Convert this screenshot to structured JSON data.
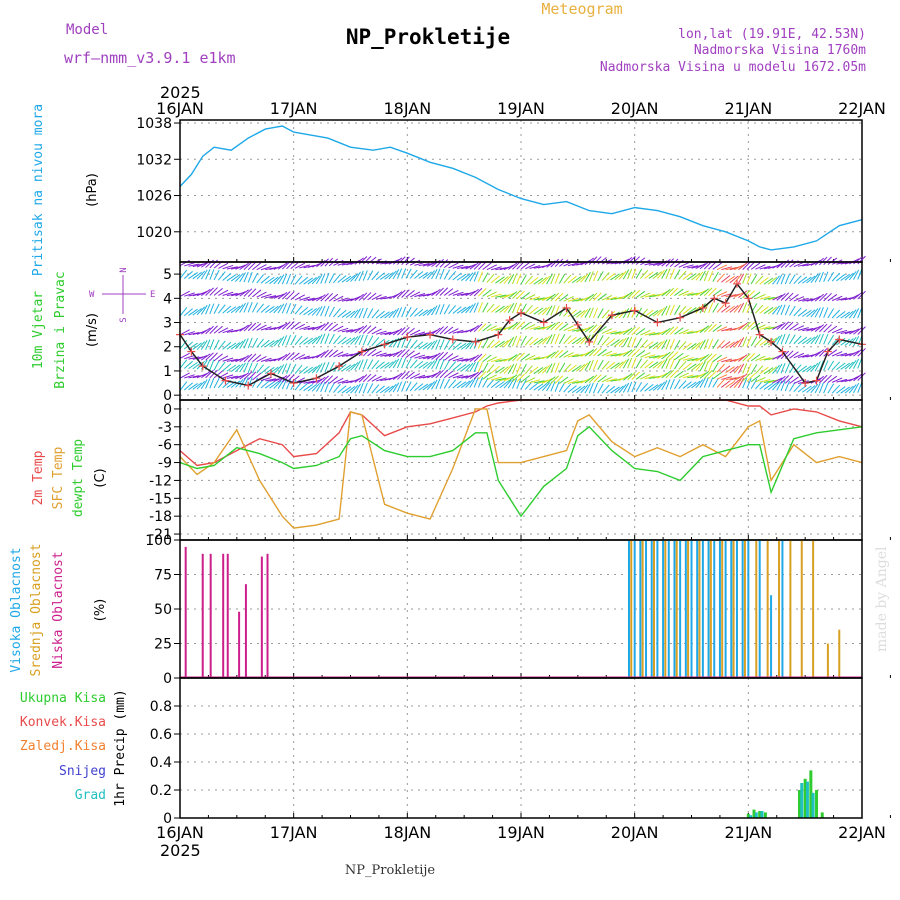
{
  "header": {
    "model_label": "Model",
    "model_name": "wrf—nmm_v3.9.1  e1km",
    "title": "NP_Prokletije",
    "product": "Meteogram",
    "lonlat": "lon,lat (19.91E, 42.53N)",
    "elevation": "Nadmorska Visina 1760m",
    "model_elevation": "Nadmorska Visina u modelu 1672.05m",
    "footer_station": "NP_Prokletije",
    "credit": "made by Angel"
  },
  "time_axis": {
    "year": "2025",
    "labels": [
      "16JAN",
      "17JAN",
      "18JAN",
      "19JAN",
      "20JAN",
      "21JAN",
      "22JAN"
    ]
  },
  "colors": {
    "pressure": "#1ea8e8",
    "temp2m": "#e84a4a",
    "sfc_temp": "#e0a030",
    "dewpt": "#2ecc2e",
    "high_cloud": "#1ea8e8",
    "mid_cloud": "#d8a020",
    "low_cloud": "#cc1f8c",
    "total_precip": "#2ecc2e",
    "conv_precip": "#e84a4a",
    "frozen_precip": "#f08030",
    "snow": "#4040d0",
    "hail": "#20c0c0"
  },
  "chart_data": [
    {
      "type": "line",
      "panel": "pressure",
      "ylabel": [
        "Pritisak na nivou mora",
        "(hPa)"
      ],
      "ylim": [
        1015,
        1038.5
      ],
      "yticks": [
        1020,
        1026,
        1032,
        1038
      ],
      "grid": true,
      "x_days": [
        0,
        0.1,
        0.2,
        0.3,
        0.45,
        0.6,
        0.75,
        0.9,
        1.0,
        1.15,
        1.3,
        1.5,
        1.7,
        1.85,
        2.0,
        2.2,
        2.4,
        2.6,
        2.8,
        3.0,
        3.2,
        3.4,
        3.6,
        3.8,
        4.0,
        4.2,
        4.4,
        4.6,
        4.8,
        5.0,
        5.1,
        5.2,
        5.4,
        5.6,
        5.8,
        6.0
      ],
      "series": [
        {
          "values": [
            1027.5,
            1029.5,
            1032.5,
            1034,
            1033.5,
            1035.5,
            1037,
            1037.5,
            1036.5,
            1036,
            1035.5,
            1034,
            1033.5,
            1034,
            1033,
            1031.5,
            1030.5,
            1029,
            1027,
            1025.5,
            1024.5,
            1025,
            1023.5,
            1023,
            1024,
            1023.5,
            1022.5,
            1021,
            1020,
            1018.5,
            1017.5,
            1017,
            1017.5,
            1018.5,
            1021,
            1022
          ]
        }
      ]
    },
    {
      "type": "line",
      "panel": "wind",
      "ylabel": [
        "10m Vjetar",
        "Brzina i Pravac",
        "(m/s)"
      ],
      "compass": {
        "n": "N",
        "s": "S",
        "w": "W",
        "e": "E"
      },
      "ylim": [
        -0.2,
        5.5
      ],
      "yticks": [
        0,
        1,
        2,
        3,
        4,
        5
      ],
      "grid": true,
      "x_days": [
        0,
        0.1,
        0.2,
        0.4,
        0.6,
        0.8,
        1.0,
        1.2,
        1.4,
        1.6,
        1.8,
        2.0,
        2.2,
        2.4,
        2.6,
        2.8,
        2.9,
        3.0,
        3.2,
        3.4,
        3.5,
        3.6,
        3.8,
        4.0,
        4.2,
        4.4,
        4.6,
        4.7,
        4.8,
        4.9,
        5.0,
        5.1,
        5.2,
        5.3,
        5.5,
        5.6,
        5.7,
        5.8,
        6.0
      ],
      "series": [
        {
          "values": [
            2.5,
            1.8,
            1.2,
            0.6,
            0.4,
            0.9,
            0.5,
            0.7,
            1.2,
            1.8,
            2.1,
            2.4,
            2.5,
            2.3,
            2.2,
            2.5,
            3.1,
            3.4,
            3.0,
            3.6,
            2.9,
            2.2,
            3.3,
            3.5,
            3.0,
            3.2,
            3.6,
            4.0,
            3.8,
            4.6,
            4.0,
            2.5,
            2.2,
            1.8,
            0.5,
            0.6,
            1.8,
            2.3,
            2.1
          ]
        }
      ]
    },
    {
      "type": "line",
      "panel": "temperature",
      "ylabel": [
        "2m Temp",
        "SFC Temp",
        "dewpt Temp",
        "(C)"
      ],
      "ylim": [
        -22,
        1.5
      ],
      "yticks": [
        0,
        -3,
        -6,
        -9,
        -12,
        -15,
        -18,
        -21
      ],
      "grid": true,
      "x_days": [
        0,
        0.15,
        0.3,
        0.5,
        0.7,
        0.9,
        1.0,
        1.2,
        1.4,
        1.5,
        1.6,
        1.8,
        2.0,
        2.2,
        2.4,
        2.6,
        2.7,
        2.8,
        3.0,
        3.2,
        3.4,
        3.5,
        3.6,
        3.8,
        4.0,
        4.2,
        4.4,
        4.6,
        4.8,
        5.0,
        5.1,
        5.2,
        5.4,
        5.6,
        5.8,
        6.0
      ],
      "series": [
        {
          "name": "2m Temp",
          "values": [
            -7,
            -9.5,
            -9,
            -7,
            -5,
            -6,
            -8,
            -7.5,
            -4,
            -0.5,
            -1,
            -4.5,
            -3,
            -2.5,
            -1.5,
            -0.5,
            0.5,
            1,
            1.5,
            2,
            1.5,
            1.5,
            2,
            2,
            2,
            1.5,
            1.5,
            1.5,
            1.5,
            0.5,
            0.5,
            -1,
            0,
            -0.5,
            -2,
            -3
          ]
        },
        {
          "name": "SFC Temp",
          "values": [
            -8,
            -11,
            -9,
            -3.5,
            -12,
            -18,
            -20,
            -19.5,
            -18.5,
            -0.5,
            -1,
            -16,
            -17.5,
            -18.5,
            -10,
            0,
            0,
            -9,
            -9,
            -8,
            -7,
            -2,
            -1,
            -5.5,
            -8,
            -6.5,
            -8,
            -6,
            -8,
            -3,
            -2,
            -12,
            -6,
            -9,
            -8,
            -9
          ]
        },
        {
          "name": "dewpt Temp",
          "values": [
            -9,
            -10,
            -9.5,
            -6.5,
            -7.5,
            -9,
            -10,
            -9.5,
            -8,
            -5,
            -4.5,
            -7,
            -8,
            -8,
            -7,
            -4,
            -4,
            -12,
            -18,
            -13,
            -10,
            -4.5,
            -3,
            -7,
            -10,
            -10.5,
            -12,
            -8,
            -7,
            -6,
            -6,
            -14,
            -5,
            -4,
            -3.5,
            -3
          ]
        }
      ]
    },
    {
      "type": "bar",
      "panel": "cloud",
      "ylabel": [
        "Visoka Oblacnost",
        "Srednja Oblacnost",
        "Niska Oblacnost",
        "(%)"
      ],
      "ylim": [
        0,
        100
      ],
      "yticks": [
        0,
        25,
        50,
        75,
        100
      ],
      "grid": true,
      "series": [
        {
          "name": "Niska Oblacnost",
          "x_days": [
            0.05,
            0.2,
            0.27,
            0.38,
            0.42,
            0.52,
            0.58,
            0.72,
            0.77
          ],
          "values": [
            95,
            90,
            90,
            90,
            90,
            48,
            68,
            88,
            90
          ]
        },
        {
          "name": "Visoka Oblacnost",
          "x_days": [
            3.95,
            4.0,
            4.05,
            4.1,
            4.15,
            4.2,
            4.25,
            4.3,
            4.35,
            4.4,
            4.45,
            4.5,
            4.55,
            4.6,
            4.65,
            4.7,
            4.75,
            4.8,
            4.85,
            4.9,
            4.95,
            5.0,
            5.1,
            5.2,
            5.3
          ],
          "values": [
            100,
            100,
            100,
            100,
            100,
            100,
            100,
            100,
            100,
            100,
            100,
            100,
            100,
            100,
            100,
            100,
            100,
            100,
            100,
            100,
            100,
            100,
            100,
            60,
            100
          ]
        },
        {
          "name": "Srednja Oblacnost",
          "x_days": [
            3.97,
            4.07,
            4.17,
            4.27,
            4.37,
            4.47,
            4.57,
            4.67,
            4.77,
            4.87,
            4.97,
            5.07,
            5.17,
            5.27,
            5.37,
            5.47,
            5.57,
            5.7,
            5.8
          ],
          "values": [
            100,
            100,
            100,
            100,
            100,
            100,
            100,
            100,
            100,
            100,
            100,
            100,
            100,
            100,
            100,
            100,
            100,
            25,
            35
          ]
        }
      ]
    },
    {
      "type": "bar",
      "panel": "precip",
      "ylabel": [
        "1hr Precip (mm)"
      ],
      "legend": [
        "Ukupna Kisa",
        "Konvek.Kisa",
        "Zaledj.Kisa",
        "Snijeg",
        "Grad"
      ],
      "ylim": [
        0,
        1.0
      ],
      "yticks": [
        0,
        0.2,
        0.4,
        0.6,
        0.8
      ],
      "grid": true,
      "series": [
        {
          "name": "Ukupna Kisa",
          "x_days": [
            5.0,
            5.05,
            5.1,
            5.15,
            5.45,
            5.5,
            5.55,
            5.6,
            5.65
          ],
          "values": [
            0.03,
            0.06,
            0.05,
            0.04,
            0.2,
            0.28,
            0.34,
            0.2,
            0.04
          ]
        },
        {
          "name": "Grad",
          "x_days": [
            5.02,
            5.07,
            5.12,
            5.47,
            5.52,
            5.57
          ],
          "values": [
            0.02,
            0.04,
            0.05,
            0.25,
            0.26,
            0.18
          ]
        }
      ]
    }
  ]
}
